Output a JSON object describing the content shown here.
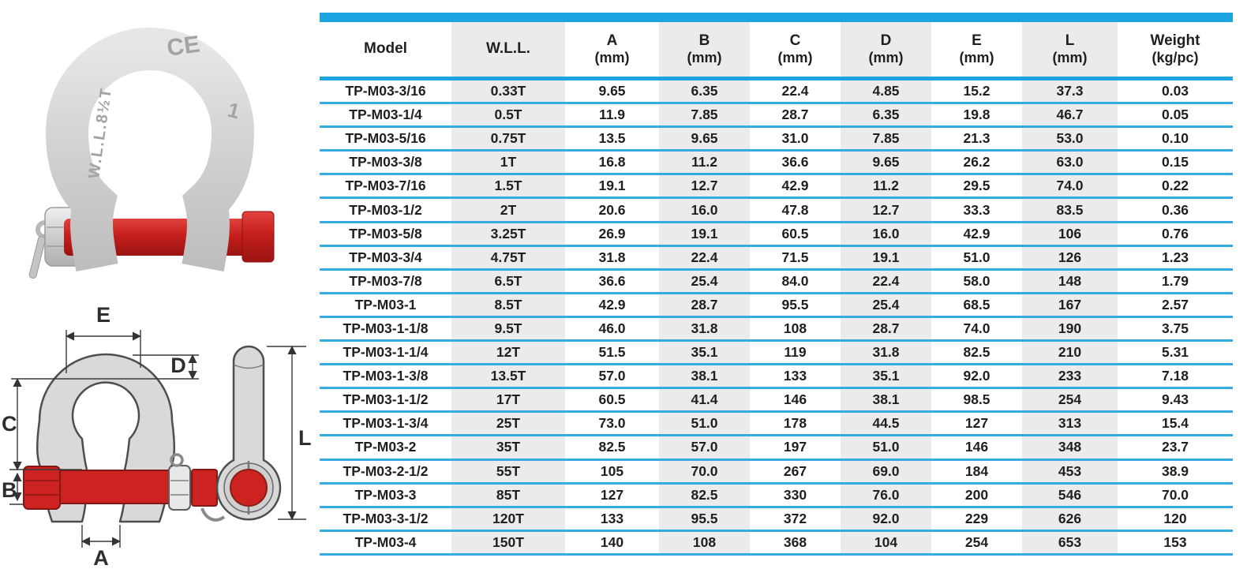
{
  "photo": {
    "markings": {
      "wll": "W.L.L.8½T",
      "ce": "CE",
      "size": "1"
    }
  },
  "diagram": {
    "labels": {
      "e": "E",
      "d": "D",
      "c": "C",
      "b": "B",
      "a": "A",
      "l": "L"
    }
  },
  "colors": {
    "accent_blue": "#1ba4e0",
    "row_line_blue": "#35abe2",
    "stripe_gray": "#ebebeb",
    "text": "#1f1f1f",
    "pin_red": "#cc2320",
    "body_gray": "#d9d9d9"
  },
  "table": {
    "columns": [
      {
        "label": "Model",
        "sub": ""
      },
      {
        "label": "W.L.L.",
        "sub": ""
      },
      {
        "label": "A",
        "sub": "(mm)"
      },
      {
        "label": "B",
        "sub": "(mm)"
      },
      {
        "label": "C",
        "sub": "(mm)"
      },
      {
        "label": "D",
        "sub": "(mm)"
      },
      {
        "label": "E",
        "sub": "(mm)"
      },
      {
        "label": "L",
        "sub": "(mm)"
      },
      {
        "label": "Weight",
        "sub": "(kg/pc)"
      }
    ],
    "rows": [
      [
        "TP-M03-3/16",
        "0.33T",
        "9.65",
        "6.35",
        "22.4",
        "4.85",
        "15.2",
        "37.3",
        "0.03"
      ],
      [
        "TP-M03-1/4",
        "0.5T",
        "11.9",
        "7.85",
        "28.7",
        "6.35",
        "19.8",
        "46.7",
        "0.05"
      ],
      [
        "TP-M03-5/16",
        "0.75T",
        "13.5",
        "9.65",
        "31.0",
        "7.85",
        "21.3",
        "53.0",
        "0.10"
      ],
      [
        "TP-M03-3/8",
        "1T",
        "16.8",
        "11.2",
        "36.6",
        "9.65",
        "26.2",
        "63.0",
        "0.15"
      ],
      [
        "TP-M03-7/16",
        "1.5T",
        "19.1",
        "12.7",
        "42.9",
        "11.2",
        "29.5",
        "74.0",
        "0.22"
      ],
      [
        "TP-M03-1/2",
        "2T",
        "20.6",
        "16.0",
        "47.8",
        "12.7",
        "33.3",
        "83.5",
        "0.36"
      ],
      [
        "TP-M03-5/8",
        "3.25T",
        "26.9",
        "19.1",
        "60.5",
        "16.0",
        "42.9",
        "106",
        "0.76"
      ],
      [
        "TP-M03-3/4",
        "4.75T",
        "31.8",
        "22.4",
        "71.5",
        "19.1",
        "51.0",
        "126",
        "1.23"
      ],
      [
        "TP-M03-7/8",
        "6.5T",
        "36.6",
        "25.4",
        "84.0",
        "22.4",
        "58.0",
        "148",
        "1.79"
      ],
      [
        "TP-M03-1",
        "8.5T",
        "42.9",
        "28.7",
        "95.5",
        "25.4",
        "68.5",
        "167",
        "2.57"
      ],
      [
        "TP-M03-1-1/8",
        "9.5T",
        "46.0",
        "31.8",
        "108",
        "28.7",
        "74.0",
        "190",
        "3.75"
      ],
      [
        "TP-M03-1-1/4",
        "12T",
        "51.5",
        "35.1",
        "119",
        "31.8",
        "82.5",
        "210",
        "5.31"
      ],
      [
        "TP-M03-1-3/8",
        "13.5T",
        "57.0",
        "38.1",
        "133",
        "35.1",
        "92.0",
        "233",
        "7.18"
      ],
      [
        "TP-M03-1-1/2",
        "17T",
        "60.5",
        "41.4",
        "146",
        "38.1",
        "98.5",
        "254",
        "9.43"
      ],
      [
        "TP-M03-1-3/4",
        "25T",
        "73.0",
        "51.0",
        "178",
        "44.5",
        "127",
        "313",
        "15.4"
      ],
      [
        "TP-M03-2",
        "35T",
        "82.5",
        "57.0",
        "197",
        "51.0",
        "146",
        "348",
        "23.7"
      ],
      [
        "TP-M03-2-1/2",
        "55T",
        "105",
        "70.0",
        "267",
        "69.0",
        "184",
        "453",
        "38.9"
      ],
      [
        "TP-M03-3",
        "85T",
        "127",
        "82.5",
        "330",
        "76.0",
        "200",
        "546",
        "70.0"
      ],
      [
        "TP-M03-3-1/2",
        "120T",
        "133",
        "95.5",
        "372",
        "92.0",
        "229",
        "626",
        "120"
      ],
      [
        "TP-M03-4",
        "150T",
        "140",
        "108",
        "368",
        "104",
        "254",
        "653",
        "153"
      ]
    ]
  }
}
